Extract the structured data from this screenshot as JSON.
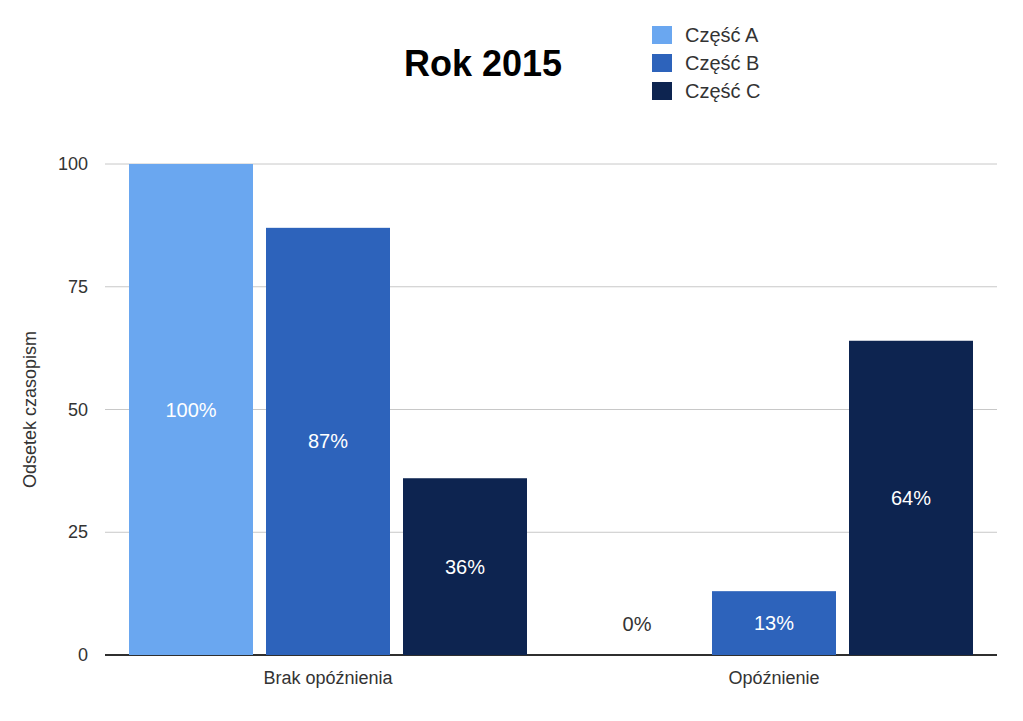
{
  "chart_data": {
    "type": "bar",
    "title": "Rok 2015",
    "y_label": "Odsetek czasopism",
    "categories": [
      "Brak opóźnienia",
      "Opóźnienie"
    ],
    "series": [
      {
        "name": "Część A",
        "color": "#6aa7f0",
        "values": [
          100,
          0
        ],
        "value_labels": [
          "100%",
          "0%"
        ]
      },
      {
        "name": "Część B",
        "color": "#2d63bb",
        "values": [
          87,
          13
        ],
        "value_labels": [
          "87%",
          "13%"
        ]
      },
      {
        "name": "Część C",
        "color": "#0d2450",
        "values": [
          36,
          64
        ],
        "value_labels": [
          "36%",
          "64%"
        ]
      }
    ],
    "ylim": [
      0,
      100
    ],
    "yticks": [
      0,
      25,
      50,
      75,
      100
    ],
    "grid": true,
    "legend": "top-right",
    "data_labels": true
  }
}
